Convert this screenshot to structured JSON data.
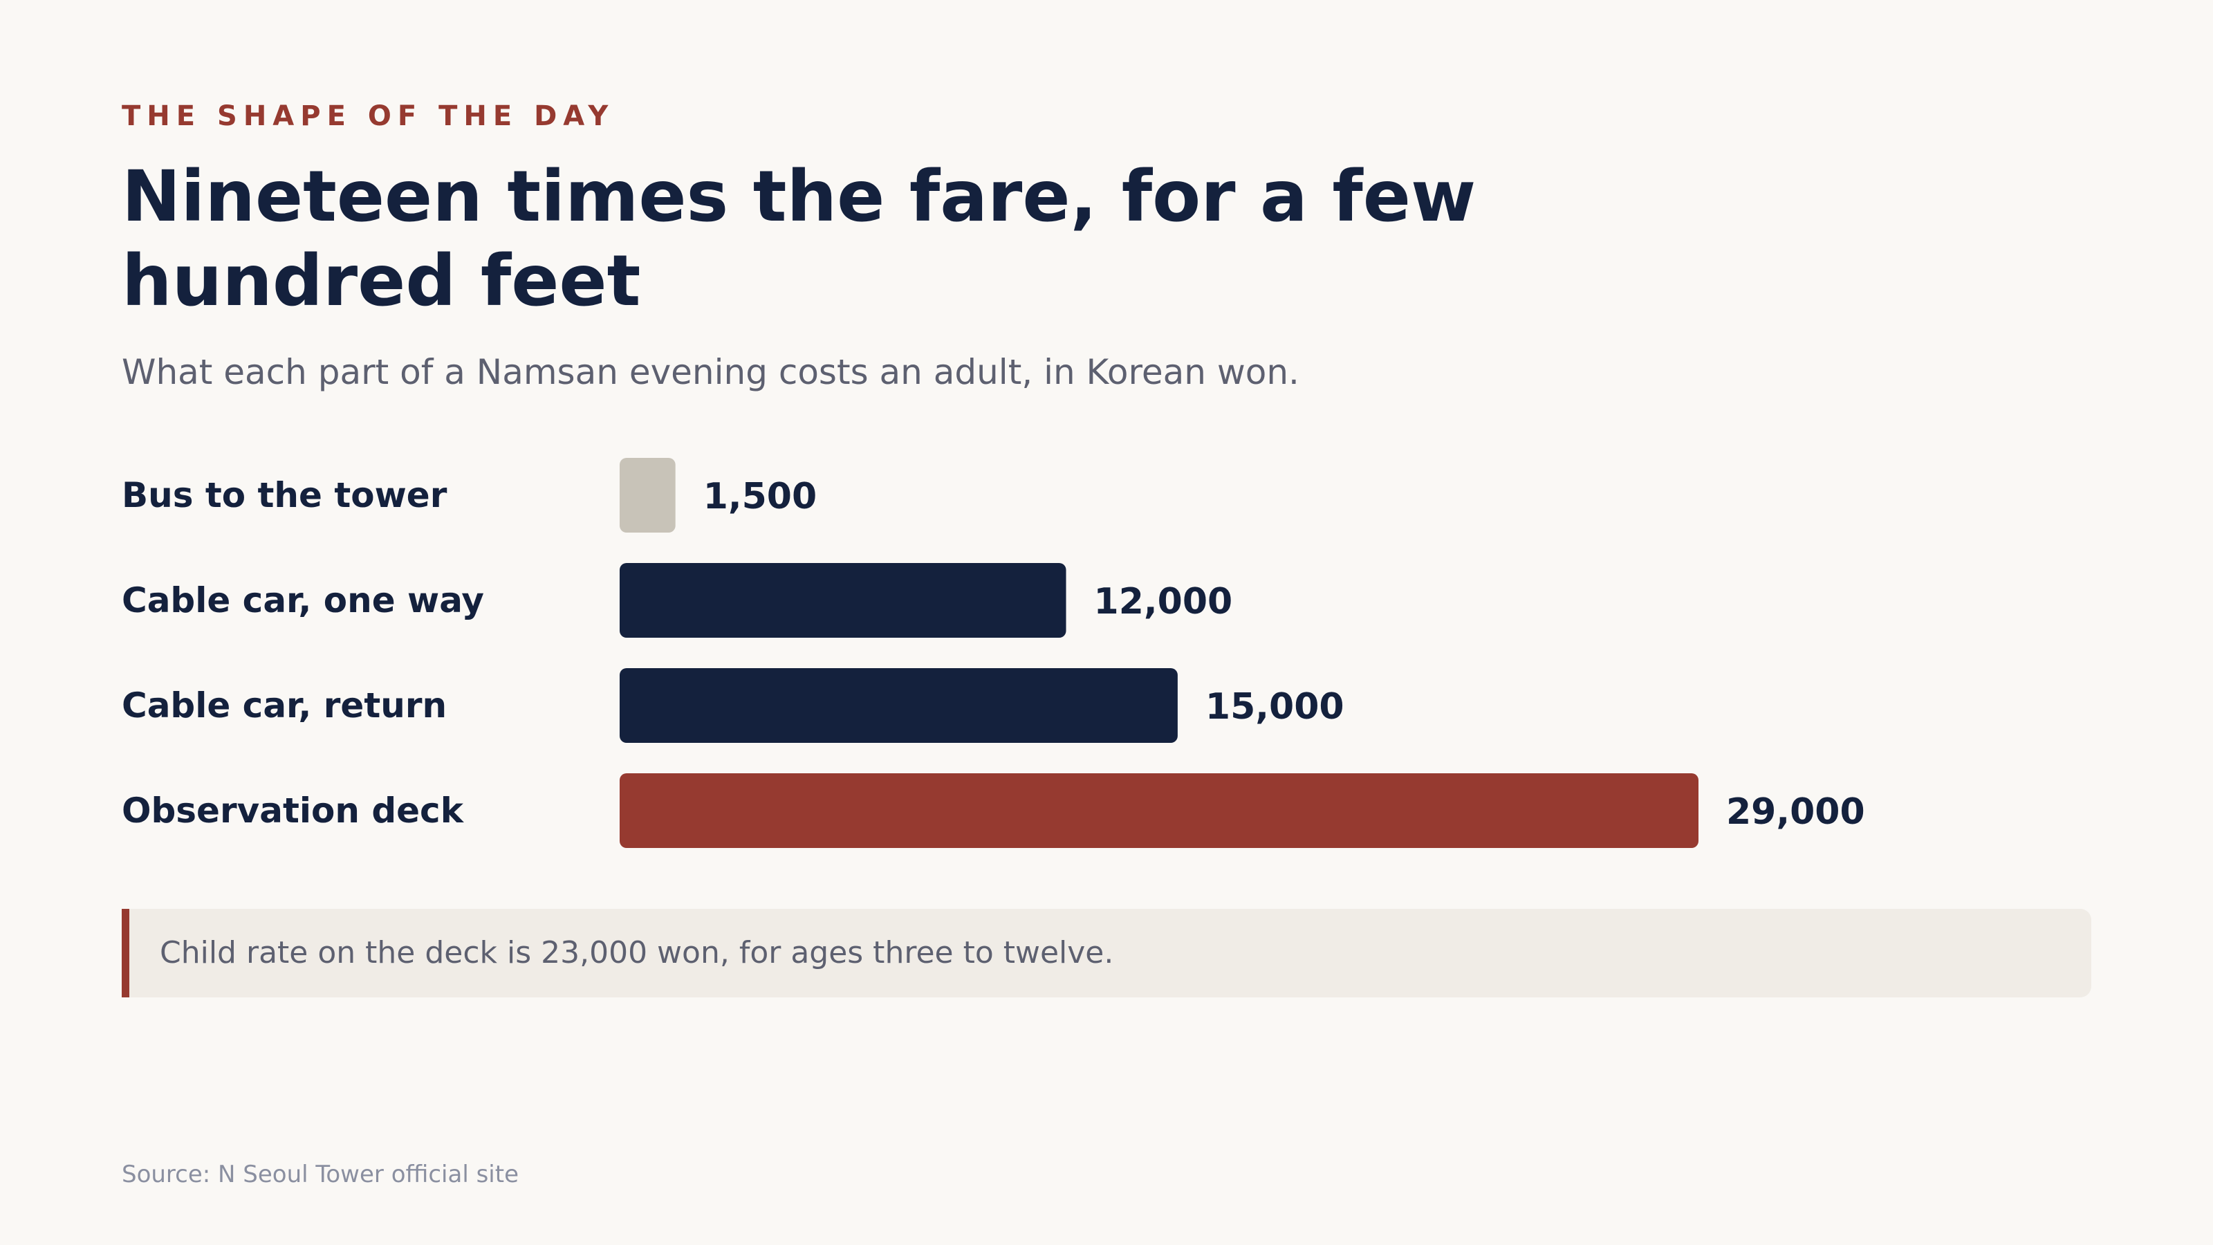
{
  "eyebrow": "THE SHAPE OF THE DAY",
  "title": "Nineteen times the fare, for a few hundred feet",
  "subtitle": "What each part of a Namsan evening costs an adult, in Korean won.",
  "chart_data": {
    "type": "bar",
    "orientation": "horizontal",
    "categories": [
      "Bus to the tower",
      "Cable car, one way",
      "Cable car, return",
      "Observation deck"
    ],
    "values": [
      1500,
      12000,
      15000,
      29000
    ],
    "value_labels": [
      "1,500",
      "12,000",
      "15,000",
      "29,000"
    ],
    "bar_colors": [
      "#c8c3b8",
      "#14213d",
      "#14213d",
      "#963a30"
    ],
    "xlim": [
      0,
      29000
    ],
    "grid": false,
    "legend": "none",
    "title": "",
    "xlabel": "",
    "ylabel": ""
  },
  "callout": "Child rate on the deck is 23,000 won, for ages three to twelve.",
  "source": "Source: N Seoul Tower official site",
  "colors": {
    "background": "#faf8f5",
    "ink": "#14213d",
    "accent": "#963a30",
    "muted": "#5d6070",
    "neutral_bar": "#c8c3b8",
    "callout_bg": "#f0ece6"
  }
}
